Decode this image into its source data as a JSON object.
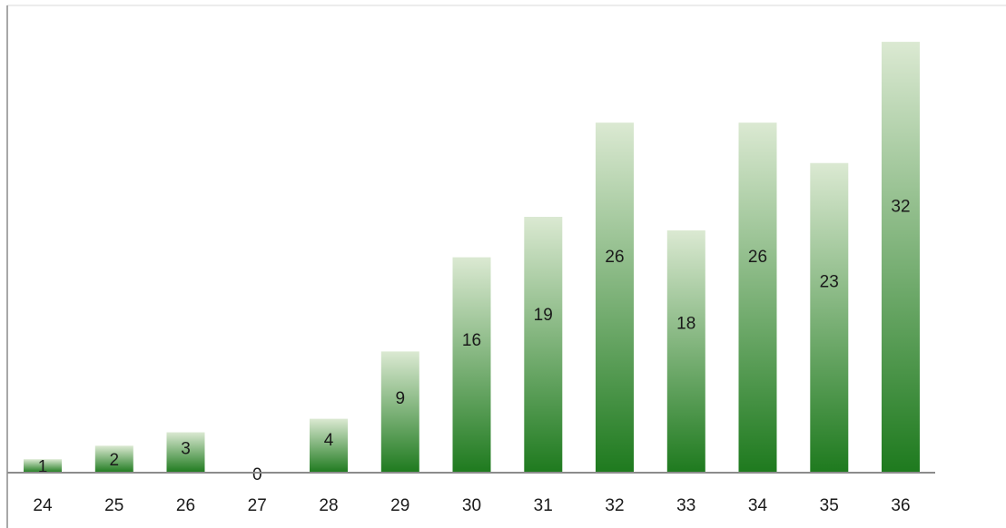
{
  "chart_data": {
    "type": "bar",
    "title": "",
    "xlabel": "",
    "ylabel": "",
    "categories": [
      "24",
      "25",
      "26",
      "27",
      "28",
      "29",
      "30",
      "31",
      "32",
      "33",
      "34",
      "35",
      "36"
    ],
    "values": [
      1,
      2,
      3,
      0,
      4,
      9,
      16,
      19,
      26,
      18,
      26,
      23,
      32
    ],
    "ylim": [
      0,
      35
    ],
    "grid": false,
    "legend": "none",
    "colors": {
      "bar_top": "#dbe9d2",
      "bar_bottom": "#1e7a1e",
      "axis": "#8c8c8c",
      "frame": "#d9d9d9"
    }
  }
}
